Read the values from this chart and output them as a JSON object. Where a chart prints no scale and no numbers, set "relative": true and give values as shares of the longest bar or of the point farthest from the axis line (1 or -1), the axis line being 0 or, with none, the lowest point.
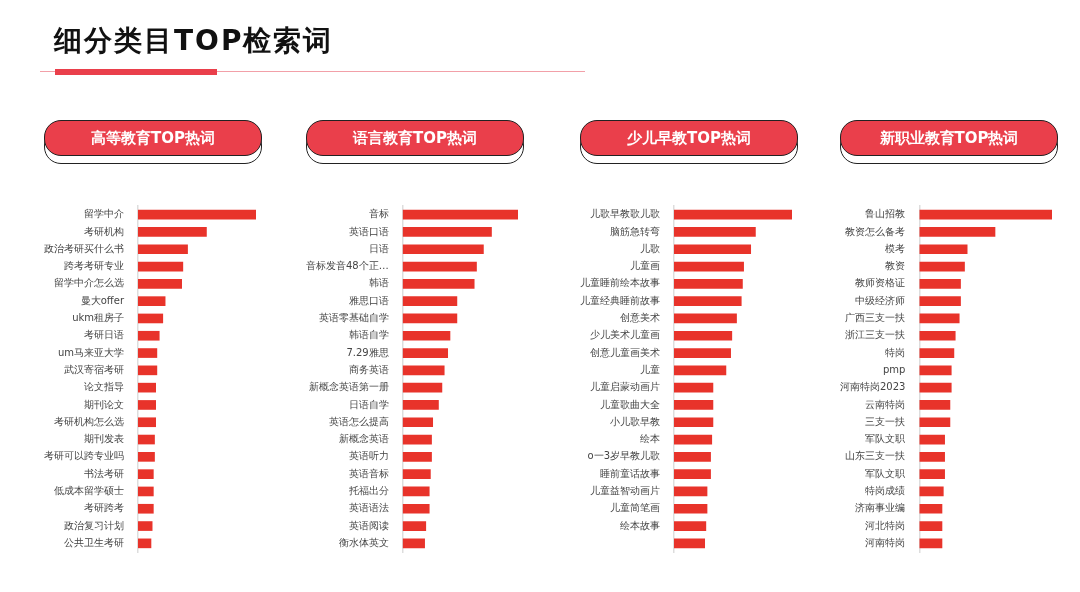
{
  "chart_data": [
    {
      "type": "bar",
      "orientation": "horizontal",
      "relative": true,
      "title": "高等教育TOP热词",
      "annotations": [
        "细分类目TOP检索词"
      ],
      "color": "#e8332a",
      "categories": [
        "留学中介",
        "考研机构",
        "政治考研买什么书",
        "跨考考研专业",
        "留学中介怎么选",
        "曼大offer",
        "ukm租房子",
        "考研日语",
        "um马来亚大学",
        "武汉寄宿考研",
        "论文指导",
        "期刊论文",
        "考研机构怎么选",
        "期刊发表",
        "考研可以跨专业吗",
        "书法考研",
        "低成本留学硕士",
        "考研跨考",
        "政治复习计划",
        "公共卫生考研"
      ],
      "values": [
        1,
        0.58,
        0.42,
        0.38,
        0.37,
        0.23,
        0.21,
        0.18,
        0.16,
        0.16,
        0.15,
        0.15,
        0.15,
        0.14,
        0.14,
        0.13,
        0.13,
        0.13,
        0.12,
        0.11
      ]
    },
    {
      "type": "bar",
      "orientation": "horizontal",
      "relative": true,
      "title": "语言教育TOP热词",
      "color": "#e8332a",
      "categories": [
        "音标",
        "英语口语",
        "日语",
        "音标发音48个正…",
        "韩语",
        "雅思口语",
        "英语零基础自学",
        "韩语自学",
        "7.29雅思",
        "商务英语",
        "新概念英语第一册",
        "日语自学",
        "英语怎么提高",
        "新概念英语",
        "英语听力",
        "英语音标",
        "托福出分",
        "英语语法",
        "英语阅读",
        "衡水体英文"
      ],
      "values": [
        1,
        0.77,
        0.7,
        0.64,
        0.62,
        0.47,
        0.47,
        0.41,
        0.39,
        0.36,
        0.34,
        0.31,
        0.26,
        0.25,
        0.25,
        0.24,
        0.23,
        0.23,
        0.2,
        0.19
      ]
    },
    {
      "type": "bar",
      "orientation": "horizontal",
      "relative": true,
      "title": "少儿早教TOP热词",
      "color": "#e8332a",
      "categories": [
        "儿歌早教歌儿歌",
        "脑筋急转弯",
        "儿歌",
        "儿童画",
        "儿童睡前绘本故事",
        "儿童经典睡前故事",
        "创意美术",
        "少儿美术儿童画",
        "创意儿童画美术",
        "儿童",
        "儿童启蒙动画片",
        "儿童歌曲大全",
        "小儿歌早教",
        "绘本",
        "o一3岁早教儿歌",
        "睡前童话故事",
        "儿童益智动画片",
        "儿童简笔画",
        "绘本故事",
        null
      ],
      "values": [
        1,
        0.69,
        0.65,
        0.59,
        0.58,
        0.57,
        0.53,
        0.49,
        0.48,
        0.44,
        0.33,
        0.33,
        0.33,
        0.32,
        0.31,
        0.31,
        0.28,
        0.28,
        0.27,
        0.26
      ]
    },
    {
      "type": "bar",
      "orientation": "horizontal",
      "relative": true,
      "title": "新职业教育TOP热词",
      "color": "#e8332a",
      "categories": [
        "鲁山招教",
        "教资怎么备考",
        "模考",
        "教资",
        "教师资格证",
        "中级经济师",
        "广西三支一扶",
        "浙江三支一扶",
        "特岗",
        "pmp",
        "河南特岗2023",
        "云南特岗",
        "三支一扶",
        "军队文职",
        "山东三支一扶",
        "军队文职",
        "特岗成绩",
        "济南事业编",
        "河北特岗",
        "河南特岗"
      ],
      "values": [
        1,
        0.57,
        0.36,
        0.34,
        0.31,
        0.31,
        0.3,
        0.27,
        0.26,
        0.24,
        0.24,
        0.23,
        0.23,
        0.19,
        0.19,
        0.19,
        0.18,
        0.17,
        0.17,
        0.17
      ]
    }
  ]
}
